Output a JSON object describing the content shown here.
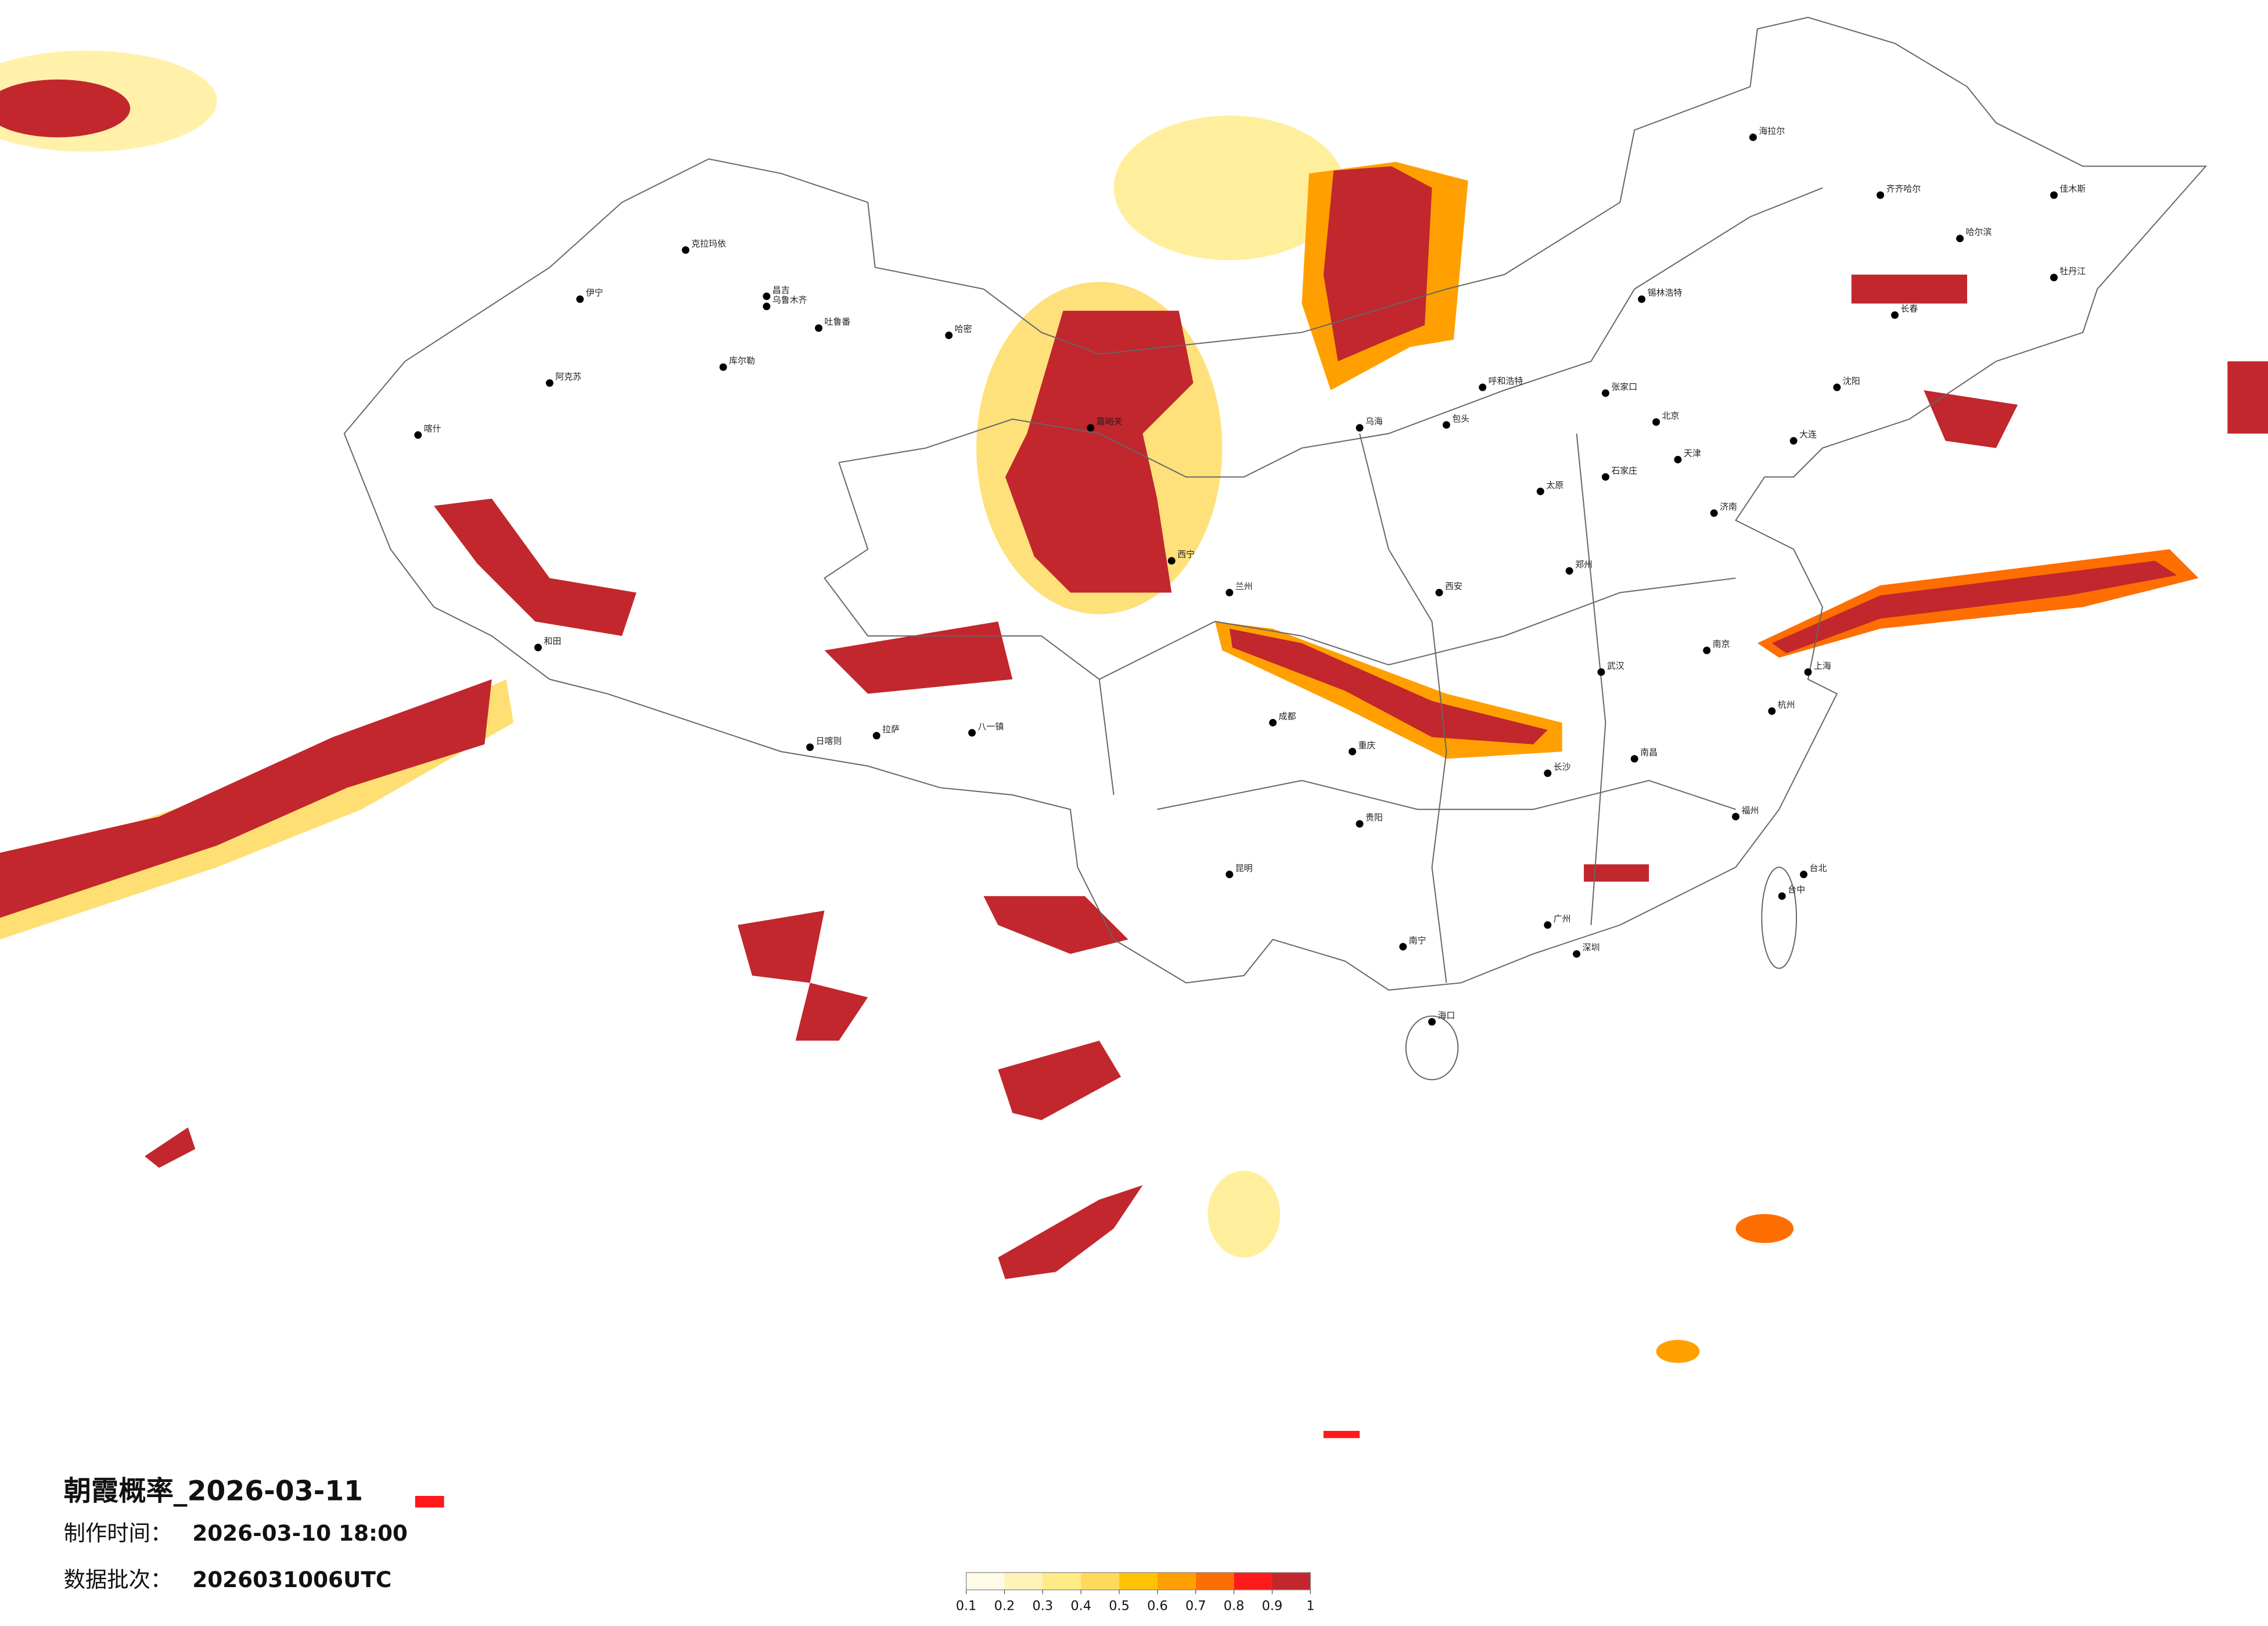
{
  "title": "朝霞概率_2026-03-11",
  "production_time": {
    "label": "制作时间：",
    "value": "2026-03-10 18:00"
  },
  "batch": {
    "label": "数据批次：",
    "value": "2026031006UTC"
  },
  "legend": {
    "ticks": [
      0.1,
      0.2,
      0.3,
      0.4,
      0.5,
      0.6,
      0.7,
      0.8,
      0.9,
      1
    ],
    "colors": [
      "#fffbe6",
      "#fff3b8",
      "#ffeb85",
      "#ffd95a",
      "#ffc400",
      "#ffa000",
      "#ff6e00",
      "#ff1a1a",
      "#c1272d"
    ]
  },
  "cities": [
    "克拉玛依",
    "昌吉",
    "乌鲁木齐",
    "吐鲁番",
    "哈密",
    "伊宁",
    "库尔勒",
    "阿克苏",
    "喀什",
    "和田",
    "日喀则",
    "拉萨",
    "八一镇",
    "嘉峪关",
    "西宁",
    "兰州",
    "乌海",
    "包头",
    "呼和浩特",
    "张家口",
    "北京",
    "天津",
    "石家庄",
    "太原",
    "济南",
    "郑州",
    "西安",
    "武汉",
    "南京",
    "上海",
    "杭州",
    "长沙",
    "南昌",
    "福州",
    "广州",
    "深圳",
    "南宁",
    "海口",
    "昆明",
    "贵阳",
    "成都",
    "重庆",
    "台北",
    "台中",
    "哈尔滨",
    "长春",
    "沈阳",
    "大连",
    "海拉尔",
    "齐齐哈尔",
    "佳木斯",
    "牡丹江",
    "锡林浩特"
  ]
}
